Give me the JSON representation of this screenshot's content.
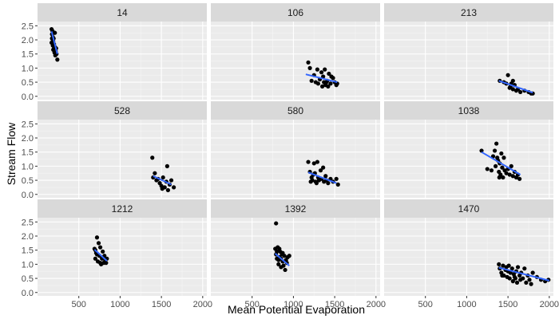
{
  "chart_data": {
    "type": "scatter",
    "xlabel": "Mean Potential Evaporation",
    "ylabel": "Stream Flow",
    "xlim": [
      0,
      2050
    ],
    "ylim": [
      -0.12,
      2.65
    ],
    "x_ticks": [
      500,
      1000,
      1500,
      2000
    ],
    "y_ticks": [
      0.0,
      0.5,
      1.0,
      1.5,
      2.0,
      2.5
    ],
    "x_tick_labels": [
      "500",
      "1000",
      "1500",
      "2000"
    ],
    "y_tick_labels": [
      "0.0",
      "0.5",
      "1.0",
      "1.5",
      "2.0",
      "2.5"
    ],
    "grid": true,
    "trend_color": "#3366FF",
    "point_color": "#000000",
    "panel_bg": "#EBEBEB",
    "strip_bg": "#D9D9D9",
    "panels": [
      {
        "label": "14",
        "points": [
          [
            170,
            2.38
          ],
          [
            175,
            2.2
          ],
          [
            180,
            2.32
          ],
          [
            185,
            2.1
          ],
          [
            190,
            1.95
          ],
          [
            170,
            1.9
          ],
          [
            185,
            1.8
          ],
          [
            195,
            2.05
          ],
          [
            200,
            1.7
          ],
          [
            210,
            1.75
          ],
          [
            220,
            1.6
          ],
          [
            205,
            1.55
          ],
          [
            215,
            1.45
          ],
          [
            230,
            1.5
          ],
          [
            240,
            1.3
          ],
          [
            190,
            1.65
          ],
          [
            175,
            2.05
          ],
          [
            200,
            1.85
          ],
          [
            210,
            2.25
          ],
          [
            225,
            1.7
          ]
        ],
        "trend": [
          [
            170,
            2.3
          ],
          [
            240,
            1.5
          ]
        ]
      },
      {
        "label": "106",
        "points": [
          [
            1180,
            1.2
          ],
          [
            1200,
            1.0
          ],
          [
            1220,
            0.55
          ],
          [
            1250,
            0.75
          ],
          [
            1270,
            0.5
          ],
          [
            1290,
            0.95
          ],
          [
            1300,
            0.45
          ],
          [
            1320,
            0.6
          ],
          [
            1340,
            0.85
          ],
          [
            1360,
            0.7
          ],
          [
            1380,
            0.95
          ],
          [
            1400,
            0.5
          ],
          [
            1410,
            0.55
          ],
          [
            1430,
            0.8
          ],
          [
            1450,
            0.45
          ],
          [
            1460,
            0.7
          ],
          [
            1480,
            0.65
          ],
          [
            1500,
            0.5
          ],
          [
            1520,
            0.4
          ],
          [
            1530,
            0.45
          ],
          [
            1350,
            0.35
          ],
          [
            1370,
            0.5
          ],
          [
            1390,
            0.4
          ],
          [
            1420,
            0.35
          ]
        ],
        "trend": [
          [
            1150,
            0.78
          ],
          [
            1530,
            0.5
          ]
        ]
      },
      {
        "label": "213",
        "points": [
          [
            1400,
            0.55
          ],
          [
            1450,
            0.5
          ],
          [
            1480,
            0.45
          ],
          [
            1500,
            0.75
          ],
          [
            1520,
            0.3
          ],
          [
            1540,
            0.45
          ],
          [
            1560,
            0.25
          ],
          [
            1580,
            0.4
          ],
          [
            1600,
            0.2
          ],
          [
            1620,
            0.25
          ],
          [
            1650,
            0.15
          ],
          [
            1700,
            0.2
          ],
          [
            1750,
            0.15
          ],
          [
            1780,
            0.1
          ],
          [
            1800,
            0.1
          ],
          [
            1530,
            0.35
          ],
          [
            1560,
            0.55
          ]
        ],
        "trend": [
          [
            1390,
            0.55
          ],
          [
            1800,
            0.13
          ]
        ]
      },
      {
        "label": "528",
        "points": [
          [
            1390,
            1.3
          ],
          [
            1400,
            0.6
          ],
          [
            1420,
            0.75
          ],
          [
            1440,
            0.5
          ],
          [
            1460,
            0.55
          ],
          [
            1480,
            0.4
          ],
          [
            1500,
            0.3
          ],
          [
            1520,
            0.6
          ],
          [
            1540,
            0.25
          ],
          [
            1560,
            0.45
          ],
          [
            1580,
            0.15
          ],
          [
            1600,
            0.35
          ],
          [
            1620,
            0.5
          ],
          [
            1650,
            0.25
          ],
          [
            1570,
            1.0
          ],
          [
            1510,
            0.2
          ]
        ],
        "trend": [
          [
            1400,
            0.65
          ],
          [
            1620,
            0.35
          ]
        ]
      },
      {
        "label": "580",
        "points": [
          [
            1180,
            1.15
          ],
          [
            1200,
            0.8
          ],
          [
            1220,
            0.6
          ],
          [
            1230,
            0.5
          ],
          [
            1250,
            1.1
          ],
          [
            1260,
            0.75
          ],
          [
            1270,
            0.45
          ],
          [
            1290,
            1.15
          ],
          [
            1300,
            0.6
          ],
          [
            1310,
            0.5
          ],
          [
            1330,
            0.85
          ],
          [
            1340,
            0.55
          ],
          [
            1360,
            0.95
          ],
          [
            1370,
            0.45
          ],
          [
            1390,
            0.65
          ],
          [
            1400,
            0.5
          ],
          [
            1420,
            0.4
          ],
          [
            1450,
            0.55
          ],
          [
            1480,
            0.45
          ],
          [
            1520,
            0.55
          ],
          [
            1540,
            0.35
          ],
          [
            1210,
            0.45
          ],
          [
            1240,
            0.7
          ],
          [
            1280,
            0.4
          ]
        ],
        "trend": [
          [
            1180,
            0.78
          ],
          [
            1520,
            0.4
          ]
        ]
      },
      {
        "label": "1038",
        "points": [
          [
            1180,
            1.55
          ],
          [
            1250,
            0.9
          ],
          [
            1300,
            0.85
          ],
          [
            1320,
            1.35
          ],
          [
            1340,
            1.55
          ],
          [
            1360,
            1.8
          ],
          [
            1370,
            1.3
          ],
          [
            1380,
            1.2
          ],
          [
            1390,
            0.8
          ],
          [
            1400,
            1.1
          ],
          [
            1410,
            0.7
          ],
          [
            1420,
            1.45
          ],
          [
            1430,
            0.95
          ],
          [
            1440,
            0.6
          ],
          [
            1450,
            1.3
          ],
          [
            1460,
            0.85
          ],
          [
            1480,
            0.75
          ],
          [
            1500,
            0.9
          ],
          [
            1520,
            0.7
          ],
          [
            1540,
            1.0
          ],
          [
            1560,
            0.65
          ],
          [
            1580,
            0.8
          ],
          [
            1600,
            0.6
          ],
          [
            1620,
            0.7
          ],
          [
            1640,
            0.55
          ],
          [
            1350,
            1.0
          ],
          [
            1395,
            0.6
          ]
        ],
        "trend": [
          [
            1180,
            1.5
          ],
          [
            1650,
            0.7
          ]
        ]
      },
      {
        "label": "1212",
        "points": [
          [
            690,
            1.55
          ],
          [
            700,
            1.2
          ],
          [
            710,
            1.4
          ],
          [
            720,
            1.95
          ],
          [
            730,
            1.1
          ],
          [
            740,
            1.75
          ],
          [
            750,
            1.3
          ],
          [
            760,
            1.6
          ],
          [
            770,
            1.0
          ],
          [
            780,
            1.2
          ],
          [
            790,
            1.45
          ],
          [
            800,
            1.05
          ],
          [
            810,
            1.3
          ],
          [
            820,
            1.15
          ],
          [
            840,
            1.2
          ],
          [
            830,
            1.05
          ],
          [
            760,
            1.05
          ],
          [
            720,
            1.35
          ],
          [
            700,
            1.5
          ]
        ],
        "trend": [
          [
            690,
            1.52
          ],
          [
            840,
            1.12
          ]
        ]
      },
      {
        "label": "1392",
        "points": [
          [
            790,
            2.45
          ],
          [
            780,
            1.55
          ],
          [
            790,
            1.35
          ],
          [
            800,
            1.2
          ],
          [
            810,
            1.6
          ],
          [
            820,
            1.0
          ],
          [
            830,
            1.25
          ],
          [
            840,
            1.45
          ],
          [
            850,
            0.9
          ],
          [
            860,
            1.35
          ],
          [
            870,
            1.1
          ],
          [
            880,
            0.95
          ],
          [
            890,
            1.3
          ],
          [
            900,
            0.8
          ],
          [
            910,
            1.15
          ],
          [
            920,
            1.05
          ],
          [
            930,
            1.25
          ],
          [
            950,
            1.3
          ],
          [
            800,
            1.45
          ],
          [
            830,
            1.55
          ],
          [
            870,
            1.4
          ],
          [
            820,
            1.15
          ],
          [
            850,
            1.2
          ]
        ],
        "trend": [
          [
            780,
            1.38
          ],
          [
            950,
            0.95
          ]
        ]
      },
      {
        "label": "1470",
        "points": [
          [
            1390,
            1.0
          ],
          [
            1400,
            0.85
          ],
          [
            1420,
            0.7
          ],
          [
            1440,
            0.95
          ],
          [
            1450,
            0.6
          ],
          [
            1470,
            0.8
          ],
          [
            1480,
            0.9
          ],
          [
            1490,
            0.55
          ],
          [
            1500,
            0.75
          ],
          [
            1510,
            0.95
          ],
          [
            1520,
            0.5
          ],
          [
            1530,
            0.7
          ],
          [
            1550,
            0.85
          ],
          [
            1560,
            0.4
          ],
          [
            1570,
            0.65
          ],
          [
            1590,
            0.5
          ],
          [
            1600,
            0.75
          ],
          [
            1610,
            0.35
          ],
          [
            1620,
            0.9
          ],
          [
            1640,
            0.6
          ],
          [
            1650,
            0.45
          ],
          [
            1660,
            0.7
          ],
          [
            1680,
            0.5
          ],
          [
            1700,
            0.85
          ],
          [
            1720,
            0.35
          ],
          [
            1740,
            0.6
          ],
          [
            1760,
            0.45
          ],
          [
            1780,
            0.3
          ],
          [
            1800,
            0.7
          ],
          [
            1850,
            0.55
          ],
          [
            1900,
            0.45
          ],
          [
            1950,
            0.4
          ],
          [
            1990,
            0.45
          ],
          [
            1430,
            0.6
          ],
          [
            1580,
            0.55
          ]
        ],
        "trend": [
          [
            1390,
            0.88
          ],
          [
            2000,
            0.42
          ]
        ]
      }
    ]
  }
}
